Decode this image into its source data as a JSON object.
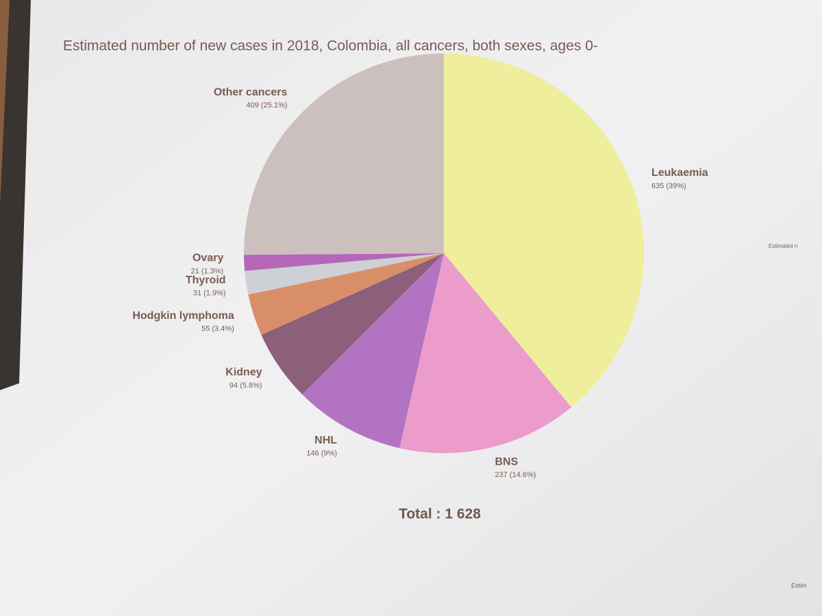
{
  "chart_data": {
    "type": "pie",
    "title": "Estimated number of new cases in 2018, Colombia, all cancers, both sexes, ages 0-",
    "categories": [
      "Leukaemia",
      "BNS",
      "NHL",
      "Kidney",
      "Hodgkin lymphoma",
      "Thyroid",
      "Ovary",
      "Other cancers"
    ],
    "values": [
      635,
      237,
      146,
      94,
      55,
      31,
      21,
      409
    ],
    "value_labels": [
      "635 (39%)",
      "237 (14.6%)",
      "146 (9%)",
      "94 (5.8%)",
      "55 (3.4%)",
      "31 (1.9%)",
      "21 (1.3%)",
      "409 (25.1%)"
    ],
    "colors": [
      "#eeee9c",
      "#eb9ccb",
      "#b274c2",
      "#8c5f7a",
      "#d98e6a",
      "#cdd1d6",
      "#b566b8",
      "#ccc0bf"
    ],
    "total_text": "Total : 1 628",
    "side_texts": [
      "Estimated n",
      "Estim"
    ]
  }
}
